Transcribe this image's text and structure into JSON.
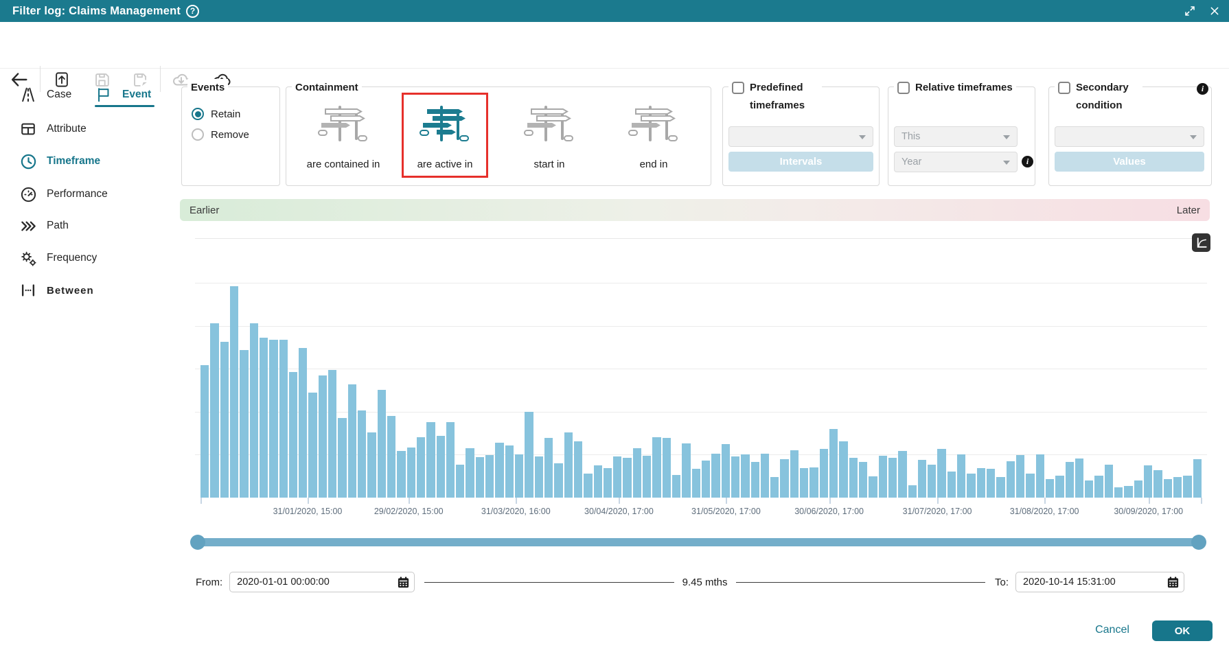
{
  "titlebar": {
    "title": "Filter log: Claims Management"
  },
  "sidebar": {
    "tabs": [
      {
        "label": "Case",
        "active": false
      },
      {
        "label": "Event",
        "active": true
      }
    ],
    "items": [
      {
        "label": "Attribute",
        "active": false
      },
      {
        "label": "Timeframe",
        "active": true
      },
      {
        "label": "Performance",
        "active": false
      },
      {
        "label": "Path",
        "active": false
      },
      {
        "label": "Frequency",
        "active": false
      },
      {
        "label": "Between",
        "active": false
      }
    ]
  },
  "panels": {
    "events": {
      "legend": "Events",
      "options": [
        {
          "label": "Retain",
          "selected": true
        },
        {
          "label": "Remove",
          "selected": false
        }
      ]
    },
    "containment": {
      "legend": "Containment",
      "options": [
        {
          "label": "are contained in",
          "selected": false
        },
        {
          "label": "are active in",
          "selected": true
        },
        {
          "label": "start in",
          "selected": false
        },
        {
          "label": "end in",
          "selected": false
        }
      ]
    },
    "predefined_timeframes": {
      "legend": "Predefined timeframes",
      "checked": false,
      "dropdown_value": "",
      "button_label": "Intervals"
    },
    "relative_timeframes": {
      "legend": "Relative timeframes",
      "checked": false,
      "dropdown_this": "This",
      "dropdown_year": "Year"
    },
    "secondary_condition": {
      "legend": "Secondary condition",
      "checked": false,
      "dropdown_value": "",
      "button_label": "Values"
    }
  },
  "timeline_header": {
    "left_label": "Earlier",
    "right_label": "Later"
  },
  "chart_data": {
    "type": "bar",
    "title": "",
    "xlabel": "",
    "ylabel": "",
    "ylim": [
      0,
      500
    ],
    "grid": true,
    "bar_color": "#87c3dd",
    "x_ticks": [
      {
        "label": "31/01/2020, 15:00",
        "pos": 0.107
      },
      {
        "label": "29/02/2020, 15:00",
        "pos": 0.208
      },
      {
        "label": "31/03/2020, 16:00",
        "pos": 0.315
      },
      {
        "label": "30/04/2020, 17:00",
        "pos": 0.418
      },
      {
        "label": "31/05/2020, 17:00",
        "pos": 0.525
      },
      {
        "label": "30/06/2020, 17:00",
        "pos": 0.628
      },
      {
        "label": "31/07/2020, 17:00",
        "pos": 0.736
      },
      {
        "label": "31/08/2020, 17:00",
        "pos": 0.843
      },
      {
        "label": "30/09/2020, 17:00",
        "pos": 0.947
      }
    ],
    "values": [
      309,
      405,
      363,
      492,
      343,
      405,
      372,
      368,
      368,
      293,
      349,
      245,
      284,
      297,
      185,
      264,
      203,
      151,
      251,
      190,
      109,
      116,
      140,
      176,
      144,
      176,
      77,
      115,
      94,
      99,
      128,
      121,
      100,
      199,
      96,
      139,
      80,
      152,
      131,
      56,
      75,
      69,
      96,
      93,
      115,
      98,
      141,
      139,
      52,
      126,
      67,
      86,
      103,
      125,
      96,
      100,
      83,
      102,
      48,
      90,
      110,
      68,
      71,
      113,
      160,
      131,
      92,
      83,
      50,
      98,
      93,
      109,
      28,
      88,
      77,
      113,
      60,
      101,
      56,
      69,
      67,
      48,
      85,
      99,
      56,
      101,
      43,
      51,
      83,
      91,
      40,
      51,
      77,
      24,
      27,
      40,
      75,
      64,
      43,
      48,
      51,
      90
    ]
  },
  "range_controls": {
    "from_label": "From:",
    "from_value": "2020-01-01 00:00:00",
    "duration_label": "9.45 mths",
    "to_label": "To:",
    "to_value": "2020-10-14 15:31:00"
  },
  "footer": {
    "cancel_label": "Cancel",
    "ok_label": "OK"
  },
  "colors": {
    "header_teal": "#1b7a8e",
    "accent_teal": "#17768b",
    "bar_blue": "#87c3dd",
    "highlight_red": "#e6302b",
    "slider_track": "#74aeca",
    "slider_handle": "#62a2c0",
    "disabled_button_blue": "#c5dee9",
    "gradient_left_green": "#d8ecd8",
    "gradient_right_pink": "#f7dee3"
  }
}
